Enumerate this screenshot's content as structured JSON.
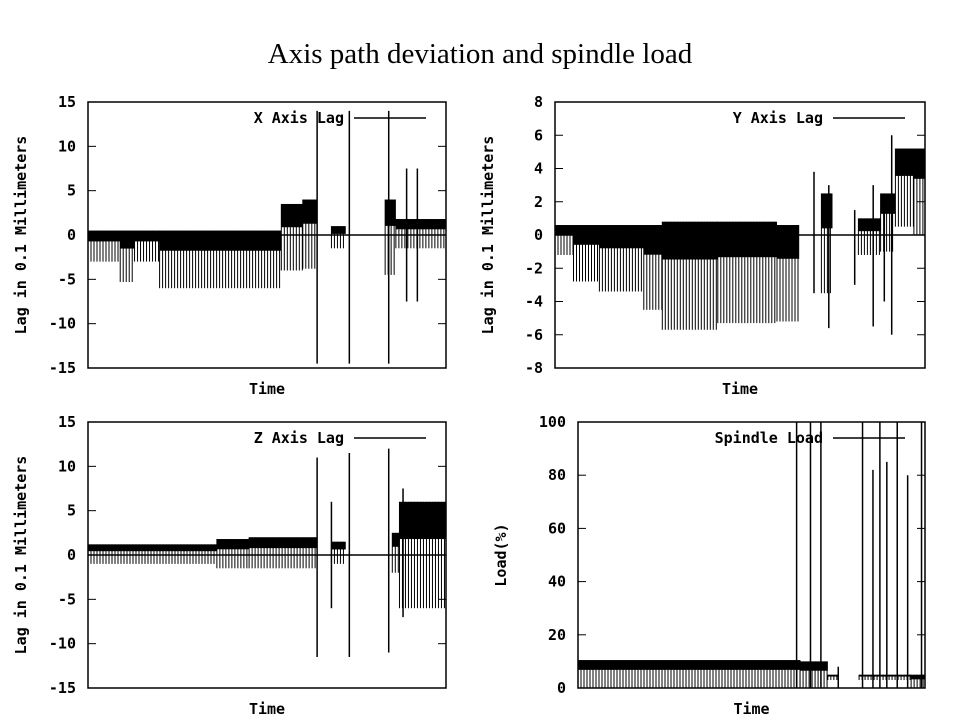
{
  "slide": {
    "title": "Axis path deviation and spindle load"
  },
  "chart_data": [
    {
      "type": "line",
      "legend": "X Axis Lag",
      "xlabel": "Time",
      "ylabel": "Lag in 0.1 Millimeters",
      "ylim": [
        -15,
        15
      ],
      "yticks": [
        "15",
        "10",
        "5",
        "0",
        "-5",
        "-10",
        "-15"
      ],
      "segments": [
        {
          "x0": 0.0,
          "x1": 0.09,
          "hi": 0.5,
          "lo": -3
        },
        {
          "x0": 0.09,
          "x1": 0.13,
          "hi": 0.5,
          "lo": -5.3
        },
        {
          "x0": 0.13,
          "x1": 0.2,
          "hi": 0.5,
          "lo": -3
        },
        {
          "x0": 0.2,
          "x1": 0.54,
          "hi": 0.5,
          "lo": -6
        },
        {
          "x0": 0.54,
          "x1": 0.6,
          "hi": 3.5,
          "lo": -4
        },
        {
          "x0": 0.6,
          "x1": 0.64,
          "hi": 4,
          "lo": -3.8
        },
        {
          "x0": 0.64,
          "x1": 0.68,
          "hi": 0,
          "lo": 0
        },
        {
          "x0": 0.68,
          "x1": 0.72,
          "hi": 1,
          "lo": -1.5
        },
        {
          "x0": 0.72,
          "x1": 0.83,
          "hi": 0,
          "lo": 0
        },
        {
          "x0": 0.83,
          "x1": 0.86,
          "hi": 4,
          "lo": -4.5
        },
        {
          "x0": 0.86,
          "x1": 1.0,
          "hi": 1.8,
          "lo": -1.5
        }
      ],
      "spikes": [
        {
          "x": 0.64,
          "hi": 14,
          "lo": -14.5
        },
        {
          "x": 0.73,
          "hi": 14,
          "lo": -14.5
        },
        {
          "x": 0.84,
          "hi": 14,
          "lo": -14.5
        },
        {
          "x": 0.89,
          "hi": 7.5,
          "lo": -7.5
        },
        {
          "x": 0.92,
          "hi": 7.5,
          "lo": -7.5
        }
      ]
    },
    {
      "type": "line",
      "legend": "Y Axis Lag",
      "xlabel": "Time",
      "ylabel": "Lag in 0.1 Millimeters",
      "ylim": [
        -8,
        8
      ],
      "yticks": [
        "8",
        "6",
        "4",
        "2",
        "0",
        "-2",
        "-4",
        "-6",
        "-8"
      ],
      "segments": [
        {
          "x0": 0.0,
          "x1": 0.05,
          "hi": 0.6,
          "lo": -1.2
        },
        {
          "x0": 0.05,
          "x1": 0.12,
          "hi": 0.6,
          "lo": -2.8
        },
        {
          "x0": 0.12,
          "x1": 0.24,
          "hi": 0.6,
          "lo": -3.4
        },
        {
          "x0": 0.24,
          "x1": 0.29,
          "hi": 0.6,
          "lo": -4.5
        },
        {
          "x0": 0.29,
          "x1": 0.44,
          "hi": 0.8,
          "lo": -5.7
        },
        {
          "x0": 0.44,
          "x1": 0.6,
          "hi": 0.8,
          "lo": -5.3
        },
        {
          "x0": 0.6,
          "x1": 0.66,
          "hi": 0.6,
          "lo": -5.2
        },
        {
          "x0": 0.66,
          "x1": 0.72,
          "hi": 0,
          "lo": 0
        },
        {
          "x0": 0.72,
          "x1": 0.75,
          "hi": 2.5,
          "lo": -3.5
        },
        {
          "x0": 0.75,
          "x1": 0.82,
          "hi": 0,
          "lo": 0
        },
        {
          "x0": 0.82,
          "x1": 0.88,
          "hi": 1.0,
          "lo": -1.2
        },
        {
          "x0": 0.88,
          "x1": 0.92,
          "hi": 2.5,
          "lo": -1.0
        },
        {
          "x0": 0.92,
          "x1": 0.97,
          "hi": 5.2,
          "lo": 0.5
        },
        {
          "x0": 0.97,
          "x1": 1.0,
          "hi": 5.2,
          "lo": 0.0
        }
      ],
      "spikes": [
        {
          "x": 0.7,
          "hi": 3.8,
          "lo": -3.5
        },
        {
          "x": 0.74,
          "hi": 3.0,
          "lo": -5.6
        },
        {
          "x": 0.81,
          "hi": 1.5,
          "lo": -3.0
        },
        {
          "x": 0.86,
          "hi": 3.0,
          "lo": -5.5
        },
        {
          "x": 0.91,
          "hi": 6.0,
          "lo": -6.0
        },
        {
          "x": 0.89,
          "hi": 1.5,
          "lo": -4.0
        }
      ]
    },
    {
      "type": "line",
      "legend": "Z Axis Lag",
      "xlabel": "Time",
      "ylabel": "Lag in 0.1 Millimeters",
      "ylim": [
        -15,
        15
      ],
      "yticks": [
        "15",
        "10",
        "5",
        "0",
        "-5",
        "-10",
        "-15"
      ],
      "segments": [
        {
          "x0": 0.0,
          "x1": 0.36,
          "hi": 1.2,
          "lo": -1.0
        },
        {
          "x0": 0.36,
          "x1": 0.45,
          "hi": 1.8,
          "lo": -1.5
        },
        {
          "x0": 0.45,
          "x1": 0.64,
          "hi": 2.0,
          "lo": -1.5
        },
        {
          "x0": 0.64,
          "x1": 0.68,
          "hi": 0,
          "lo": 0
        },
        {
          "x0": 0.68,
          "x1": 0.72,
          "hi": 1.5,
          "lo": -1.0
        },
        {
          "x0": 0.72,
          "x1": 0.85,
          "hi": 0,
          "lo": 0
        },
        {
          "x0": 0.85,
          "x1": 0.87,
          "hi": 2.5,
          "lo": -2.0
        },
        {
          "x0": 0.87,
          "x1": 1.0,
          "hi": 6.0,
          "lo": -6.0
        }
      ],
      "spikes": [
        {
          "x": 0.64,
          "hi": 11,
          "lo": -11.5
        },
        {
          "x": 0.68,
          "hi": 6.0,
          "lo": -6.0
        },
        {
          "x": 0.73,
          "hi": 11.5,
          "lo": -11.5
        },
        {
          "x": 0.84,
          "hi": 12,
          "lo": -11
        },
        {
          "x": 0.88,
          "hi": 7.5,
          "lo": -7.0
        }
      ]
    },
    {
      "type": "line",
      "legend": "Spindle Load",
      "xlabel": "Time",
      "ylabel": "Load(%)",
      "ylim": [
        0,
        100
      ],
      "yticks": [
        "100",
        "80",
        "60",
        "40",
        "20",
        "0"
      ],
      "segments": [
        {
          "x0": 0.0,
          "x1": 0.64,
          "hi": 10.5,
          "lo": 0
        },
        {
          "x0": 0.64,
          "x1": 0.72,
          "hi": 10,
          "lo": 0
        },
        {
          "x0": 0.72,
          "x1": 0.75,
          "hi": 5,
          "lo": 3
        },
        {
          "x0": 0.75,
          "x1": 0.81,
          "hi": 0,
          "lo": 0
        },
        {
          "x0": 0.81,
          "x1": 0.96,
          "hi": 5,
          "lo": 3
        },
        {
          "x0": 0.96,
          "x1": 1.0,
          "hi": 5,
          "lo": 0
        }
      ],
      "spikes": [
        {
          "x": 0.63,
          "hi": 100,
          "lo": 0
        },
        {
          "x": 0.67,
          "hi": 100,
          "lo": 0
        },
        {
          "x": 0.7,
          "hi": 100,
          "lo": 0
        },
        {
          "x": 0.75,
          "hi": 8,
          "lo": 0
        },
        {
          "x": 0.82,
          "hi": 100,
          "lo": 0
        },
        {
          "x": 0.85,
          "hi": 82,
          "lo": 0
        },
        {
          "x": 0.87,
          "hi": 100,
          "lo": 0
        },
        {
          "x": 0.89,
          "hi": 85,
          "lo": 0
        },
        {
          "x": 0.92,
          "hi": 100,
          "lo": 0
        },
        {
          "x": 0.95,
          "hi": 80,
          "lo": 0
        },
        {
          "x": 0.99,
          "hi": 100,
          "lo": 0
        }
      ]
    }
  ]
}
